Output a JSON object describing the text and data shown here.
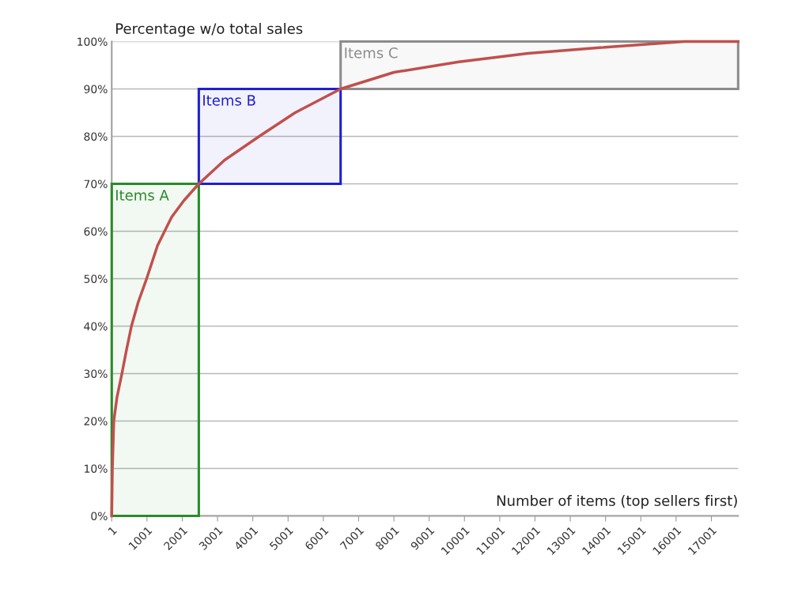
{
  "chart_data": {
    "type": "line",
    "ylabel": "Percentage w/o total sales",
    "xlabel": "Number of items (top sellers first)",
    "series": [
      {
        "color": "#c0504d",
        "x": [
          1,
          20,
          60,
          150,
          290,
          420,
          560,
          750,
          990,
          1300,
          1700,
          2050,
          2470,
          3200,
          4180,
          5200,
          6490,
          8000,
          9840,
          11800,
          13830,
          16240,
          17760
        ],
        "values": [
          0,
          10,
          20,
          25,
          30,
          35,
          40,
          45,
          50,
          57,
          63,
          66.5,
          70,
          75,
          80,
          85,
          90,
          93.5,
          95.7,
          97.5,
          98.7,
          100,
          100
        ]
      }
    ],
    "bands": [
      {
        "axis": "x",
        "from": 1,
        "to": 2470,
        "label": "Items A",
        "color": "#2a8a2a"
      },
      {
        "axis": "x",
        "from": 2470,
        "to": 6490,
        "label": "Items B",
        "color": "#1f1fd6"
      },
      {
        "axis": "x",
        "from": 6490,
        "to": 17760,
        "label": "Items C",
        "color": "#8c8c8c"
      }
    ],
    "xlim": [
      1,
      17760
    ],
    "xticks": [
      1,
      1001,
      2001,
      3001,
      4001,
      5001,
      6001,
      7001,
      8001,
      9001,
      10001,
      11001,
      12001,
      13001,
      14001,
      15001,
      16001,
      17001
    ],
    "ylim": [
      0,
      100
    ],
    "yticks": [
      {
        "value": 0,
        "label": "0%"
      },
      {
        "value": 10,
        "label": "10%"
      },
      {
        "value": 20,
        "label": "20%"
      },
      {
        "value": 30,
        "label": "30%"
      },
      {
        "value": 40,
        "label": "40%"
      },
      {
        "value": 50,
        "label": "50%"
      },
      {
        "value": 60,
        "label": "60%"
      },
      {
        "value": 70,
        "label": "70%"
      },
      {
        "value": 80,
        "label": "80%"
      },
      {
        "value": 90,
        "label": "90%"
      },
      {
        "value": 100,
        "label": "100%"
      }
    ],
    "grid": "y"
  }
}
